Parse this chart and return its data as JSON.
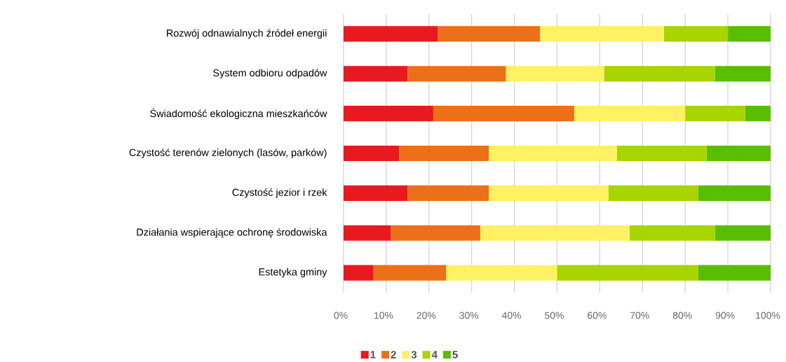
{
  "chart_data": {
    "type": "bar",
    "orientation": "horizontal",
    "stacked": true,
    "categories": [
      "Rozwój odnawialnych źródeł energii",
      "System odbioru odpadów",
      "Świadomość ekologiczna mieszkańców",
      "Czystość terenów zielonych (lasów, parków)",
      "Czystość jezior i rzek",
      "Działania wspierające ochronę środowiska",
      "Estetyka gminy"
    ],
    "series": [
      {
        "name": "1",
        "color": "#e8191f",
        "values": [
          22,
          15,
          21,
          13,
          15,
          11,
          7
        ]
      },
      {
        "name": "2",
        "color": "#ec6f19",
        "values": [
          24,
          23,
          33,
          21,
          19,
          21,
          17
        ]
      },
      {
        "name": "3",
        "color": "#fff064",
        "values": [
          29,
          23,
          26,
          30,
          28,
          35,
          26
        ]
      },
      {
        "name": "4",
        "color": "#a8d400",
        "values": [
          15,
          26,
          14,
          21,
          21,
          20,
          33
        ]
      },
      {
        "name": "5",
        "color": "#58be00",
        "values": [
          10,
          13,
          6,
          15,
          17,
          13,
          17
        ]
      }
    ],
    "xlim": [
      0,
      100
    ],
    "xticks": [
      {
        "value": 0,
        "label": "0%"
      },
      {
        "value": 10,
        "label": "10%"
      },
      {
        "value": 20,
        "label": "20%"
      },
      {
        "value": 30,
        "label": "30%"
      },
      {
        "value": 40,
        "label": "40%"
      },
      {
        "value": 50,
        "label": "50%"
      },
      {
        "value": 60,
        "label": "60%"
      },
      {
        "value": 70,
        "label": "70%"
      },
      {
        "value": 80,
        "label": "80%"
      },
      {
        "value": 90,
        "label": "90%"
      },
      {
        "value": 100,
        "label": "100%"
      }
    ],
    "grid": "x",
    "legend": "bottom"
  }
}
